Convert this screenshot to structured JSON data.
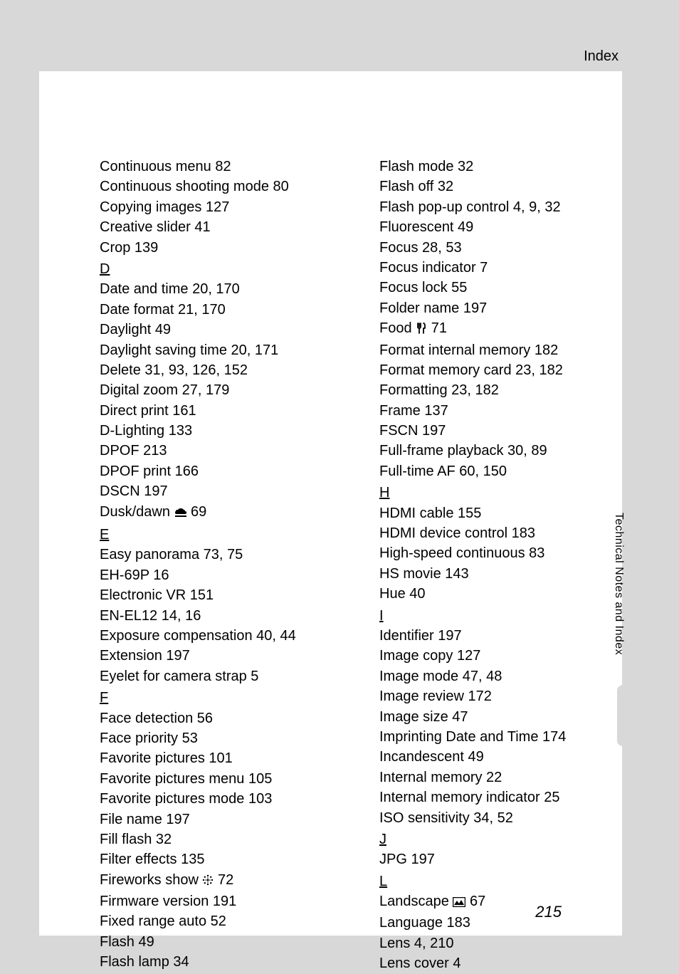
{
  "header": {
    "title": "Index"
  },
  "pageNumber": "215",
  "sideLabel": "Technical Notes and Index",
  "left": [
    {
      "t": "entry",
      "text": "Continuous menu 82"
    },
    {
      "t": "entry",
      "text": "Continuous shooting mode 80"
    },
    {
      "t": "entry",
      "text": "Copying images 127"
    },
    {
      "t": "entry",
      "text": "Creative slider 41"
    },
    {
      "t": "entry",
      "text": "Crop 139"
    },
    {
      "t": "section",
      "text": "D"
    },
    {
      "t": "entry",
      "text": "Date and time 20, 170"
    },
    {
      "t": "entry",
      "text": "Date format 21, 170"
    },
    {
      "t": "entry",
      "text": "Daylight 49"
    },
    {
      "t": "entry",
      "text": "Daylight saving time 20, 171"
    },
    {
      "t": "entry",
      "text": "Delete 31, 93, 126, 152"
    },
    {
      "t": "entry",
      "text": "Digital zoom 27, 179"
    },
    {
      "t": "entry",
      "text": "Direct print 161"
    },
    {
      "t": "entry",
      "text": "D-Lighting 133"
    },
    {
      "t": "entry",
      "text": "DPOF 213"
    },
    {
      "t": "entry",
      "text": "DPOF print 166"
    },
    {
      "t": "entry",
      "text": "DSCN 197"
    },
    {
      "t": "entry",
      "pre": "Dusk/dawn ",
      "icon": "dusk",
      "post": " 69"
    },
    {
      "t": "section",
      "text": "E"
    },
    {
      "t": "entry",
      "text": "Easy panorama 73, 75"
    },
    {
      "t": "entry",
      "text": "EH-69P 16"
    },
    {
      "t": "entry",
      "text": "Electronic VR 151"
    },
    {
      "t": "entry",
      "text": "EN-EL12 14, 16"
    },
    {
      "t": "entry",
      "text": "Exposure compensation 40, 44"
    },
    {
      "t": "entry",
      "text": "Extension 197"
    },
    {
      "t": "entry",
      "text": "Eyelet for camera strap 5"
    },
    {
      "t": "section",
      "text": "F"
    },
    {
      "t": "entry",
      "text": "Face detection 56"
    },
    {
      "t": "entry",
      "text": "Face priority 53"
    },
    {
      "t": "entry",
      "text": "Favorite pictures 101"
    },
    {
      "t": "entry",
      "text": "Favorite pictures menu 105"
    },
    {
      "t": "entry",
      "text": "Favorite pictures mode 103"
    },
    {
      "t": "entry",
      "text": "File name 197"
    },
    {
      "t": "entry",
      "text": "Fill flash 32"
    },
    {
      "t": "entry",
      "text": "Filter effects 135"
    },
    {
      "t": "entry",
      "pre": "Fireworks show ",
      "icon": "fireworks",
      "post": " 72"
    },
    {
      "t": "entry",
      "text": "Firmware version 191"
    },
    {
      "t": "entry",
      "text": "Fixed range auto 52"
    },
    {
      "t": "entry",
      "text": "Flash 49"
    },
    {
      "t": "entry",
      "text": "Flash lamp 34"
    }
  ],
  "right": [
    {
      "t": "entry",
      "text": "Flash mode 32"
    },
    {
      "t": "entry",
      "text": "Flash off 32"
    },
    {
      "t": "entry",
      "text": "Flash pop-up control 4, 9, 32"
    },
    {
      "t": "entry",
      "text": "Fluorescent 49"
    },
    {
      "t": "entry",
      "text": "Focus 28, 53"
    },
    {
      "t": "entry",
      "text": "Focus indicator 7"
    },
    {
      "t": "entry",
      "text": "Focus lock 55"
    },
    {
      "t": "entry",
      "text": "Folder name 197"
    },
    {
      "t": "entry",
      "pre": "Food ",
      "icon": "food",
      "post": " 71"
    },
    {
      "t": "entry",
      "text": "Format internal memory 182"
    },
    {
      "t": "entry",
      "text": "Format memory card 23, 182"
    },
    {
      "t": "entry",
      "text": "Formatting 23, 182"
    },
    {
      "t": "entry",
      "text": "Frame 137"
    },
    {
      "t": "entry",
      "text": "FSCN 197"
    },
    {
      "t": "entry",
      "text": "Full-frame playback 30, 89"
    },
    {
      "t": "entry",
      "text": "Full-time AF 60, 150"
    },
    {
      "t": "section",
      "text": "H"
    },
    {
      "t": "entry",
      "text": "HDMI cable 155"
    },
    {
      "t": "entry",
      "text": "HDMI device control 183"
    },
    {
      "t": "entry",
      "text": "High-speed continuous 83"
    },
    {
      "t": "entry",
      "text": "HS movie 143"
    },
    {
      "t": "entry",
      "text": "Hue 40"
    },
    {
      "t": "section",
      "text": "I"
    },
    {
      "t": "entry",
      "text": "Identifier 197"
    },
    {
      "t": "entry",
      "text": "Image copy 127"
    },
    {
      "t": "entry",
      "text": "Image mode 47, 48"
    },
    {
      "t": "entry",
      "text": "Image review 172"
    },
    {
      "t": "entry",
      "text": "Image size 47"
    },
    {
      "t": "entry",
      "text": "Imprinting Date and Time 174"
    },
    {
      "t": "entry",
      "text": "Incandescent 49"
    },
    {
      "t": "entry",
      "text": "Internal memory 22"
    },
    {
      "t": "entry",
      "text": "Internal memory indicator 25"
    },
    {
      "t": "entry",
      "text": "ISO sensitivity 34, 52"
    },
    {
      "t": "section",
      "text": "J"
    },
    {
      "t": "entry",
      "text": "JPG 197"
    },
    {
      "t": "section",
      "text": "L"
    },
    {
      "t": "entry",
      "pre": "Landscape ",
      "icon": "landscape",
      "post": " 67"
    },
    {
      "t": "entry",
      "text": "Language 183"
    },
    {
      "t": "entry",
      "text": "Lens 4, 210"
    },
    {
      "t": "entry",
      "text": "Lens cover 4"
    }
  ],
  "icons": {
    "dusk": "<svg width='18' height='14' viewBox='0 0 18 14'><path d='M4 3 Q2 3 2 5 Q1 5 1 7 Q1 9 3 9 L15 9 Q17 9 17 7 Q17 5 15 5 Q15 3 13 3 Q12 1 9 1 Q6 1 5 3 Z' fill='black'/><rect x='1' y='11' width='16' height='2' fill='black'/></svg>",
    "fireworks": "<svg width='16' height='16' viewBox='0 0 16 16'><circle cx='8' cy='8' r='1.5' fill='black'/><circle cx='8' cy='2' r='1.2' fill='black'/><circle cx='8' cy='14' r='1.2' fill='black'/><circle cx='2' cy='8' r='1.2' fill='black'/><circle cx='14' cy='8' r='1.2' fill='black'/><circle cx='3.8' cy='3.8' r='1.2' fill='black'/><circle cx='12.2' cy='3.8' r='1.2' fill='black'/><circle cx='3.8' cy='12.2' r='1.2' fill='black'/><circle cx='12.2' cy='12.2' r='1.2' fill='black'/><circle cx='5' cy='8' r='0.8' fill='black'/><circle cx='11' cy='8' r='0.8' fill='black'/><circle cx='8' cy='5' r='0.8' fill='black'/><circle cx='8' cy='11' r='0.8' fill='black'/></svg>",
    "food": "<svg width='16' height='16' viewBox='0 0 16 16'><path d='M3 1 L3 6 M5 1 L5 6 M7 1 L7 6 M3 6 Q3 8 5 8 Q7 8 7 6 M5 8 L5 15' stroke='black' stroke-width='1.8' fill='none' stroke-linecap='round'/><path d='M11 1 Q13 1 13 5 L13 8 L11 8 L11 15' stroke='black' stroke-width='1.8' fill='none' stroke-linecap='round' stroke-linejoin='round'/></svg>",
    "landscape": "<svg width='18' height='14' viewBox='0 0 18 14'><rect x='0.5' y='0.5' width='17' height='13' fill='none' stroke='black' stroke-width='1.5'/><path d='M2 11 L6 5 L9 9 L12 4 L16 11 Z' fill='black'/></svg>"
  },
  "style": {
    "page_bg": "#ffffff",
    "body_bg": "#d8d8d8",
    "font_size_body": 20,
    "font_size_side": 16,
    "font_size_pagenum": 22,
    "line_height": 1.42,
    "text_color": "#000000"
  }
}
